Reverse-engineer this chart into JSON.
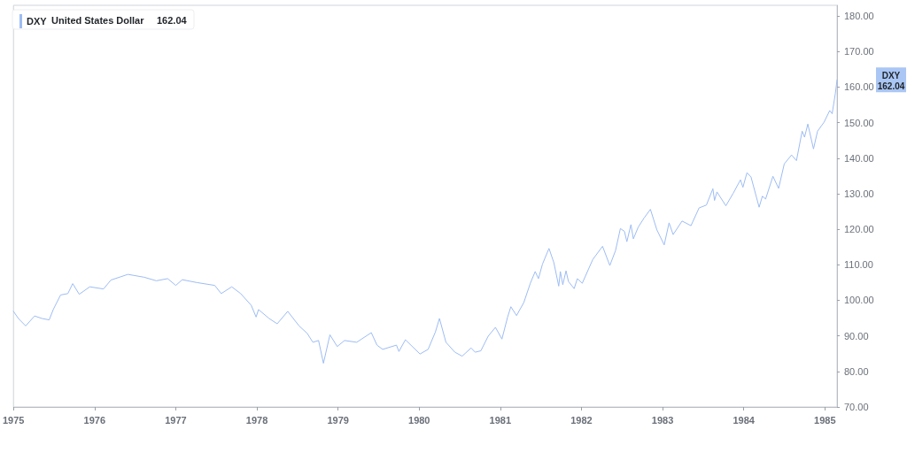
{
  "chart_data": {
    "type": "line",
    "annotations": [
      "United States Dollar",
      "162.04"
    ],
    "xlim": [
      1975,
      1985.15
    ],
    "xticks": [
      1975,
      1976,
      1977,
      1978,
      1979,
      1980,
      1981,
      1982,
      1983,
      1984,
      1985
    ],
    "ylim": [
      70,
      183
    ],
    "yticks": [
      {
        "value": 70,
        "label": "70.00"
      },
      {
        "value": 80,
        "label": "80.00"
      },
      {
        "value": 90,
        "label": "90.00"
      },
      {
        "value": 100,
        "label": "100.00"
      },
      {
        "value": 110,
        "label": "110.00"
      },
      {
        "value": 120,
        "label": "120.00"
      },
      {
        "value": 130,
        "label": "130.00"
      },
      {
        "value": 140,
        "label": "140.00"
      },
      {
        "value": 150,
        "label": "150.00"
      },
      {
        "value": 160,
        "label": "160.00"
      },
      {
        "value": 170,
        "label": "170.00"
      },
      {
        "value": 180,
        "label": "180.00"
      }
    ],
    "grid": false,
    "legend": "top left",
    "marker": "none",
    "line_style": "solid",
    "series": [
      {
        "name": "DXY",
        "color": "#9dbcf3",
        "x": [
          1975.0,
          1975.06,
          1975.15,
          1975.26,
          1975.35,
          1975.44,
          1975.49,
          1975.58,
          1975.67,
          1975.73,
          1975.81,
          1975.94,
          1976.11,
          1976.2,
          1976.41,
          1976.61,
          1976.76,
          1976.9,
          1977.0,
          1977.08,
          1977.26,
          1977.48,
          1977.56,
          1977.69,
          1977.8,
          1977.93,
          1977.99,
          1978.02,
          1978.15,
          1978.25,
          1978.38,
          1978.52,
          1978.62,
          1978.69,
          1978.76,
          1978.82,
          1978.9,
          1978.99,
          1979.08,
          1979.23,
          1979.41,
          1979.48,
          1979.55,
          1979.72,
          1979.75,
          1979.83,
          1980.01,
          1980.11,
          1980.2,
          1980.25,
          1980.33,
          1980.44,
          1980.53,
          1980.64,
          1980.69,
          1980.76,
          1980.85,
          1980.94,
          1981.02,
          1981.09,
          1981.13,
          1981.2,
          1981.29,
          1981.37,
          1981.43,
          1981.47,
          1981.52,
          1981.6,
          1981.66,
          1981.72,
          1981.74,
          1981.77,
          1981.81,
          1981.84,
          1981.91,
          1981.95,
          1982.01,
          1982.14,
          1982.26,
          1982.35,
          1982.42,
          1982.48,
          1982.53,
          1982.56,
          1982.61,
          1982.64,
          1982.7,
          1982.77,
          1982.85,
          1982.93,
          1983.02,
          1983.08,
          1983.13,
          1983.24,
          1983.35,
          1983.45,
          1983.54,
          1983.62,
          1983.64,
          1983.67,
          1983.78,
          1983.87,
          1983.96,
          1983.99,
          1984.04,
          1984.09,
          1984.19,
          1984.23,
          1984.27,
          1984.36,
          1984.43,
          1984.5,
          1984.59,
          1984.65,
          1984.72,
          1984.75,
          1984.79,
          1984.86,
          1984.91,
          1984.99,
          1985.06,
          1985.09,
          1985.13,
          1985.15
        ],
        "values": [
          96.9,
          94.9,
          92.8,
          95.6,
          94.9,
          94.5,
          97.4,
          101.5,
          101.9,
          104.7,
          101.7,
          103.8,
          103.2,
          105.7,
          107.3,
          106.5,
          105.5,
          106.1,
          104.2,
          105.8,
          105.0,
          104.2,
          101.9,
          103.8,
          101.9,
          98.6,
          95.3,
          97.4,
          94.9,
          93.4,
          96.9,
          92.8,
          90.7,
          88.2,
          88.7,
          82.3,
          90.3,
          87.0,
          88.7,
          88.2,
          90.9,
          87.4,
          86.2,
          87.4,
          85.6,
          88.9,
          84.9,
          86.2,
          91.1,
          94.9,
          88.2,
          85.4,
          84.3,
          86.6,
          85.4,
          85.8,
          89.9,
          92.4,
          89.1,
          95.3,
          98.2,
          95.7,
          99.4,
          104.8,
          108.1,
          106.1,
          110.2,
          114.6,
          110.6,
          104.0,
          108.1,
          104.4,
          108.3,
          105.3,
          103.3,
          106.1,
          104.8,
          111.5,
          115.2,
          109.8,
          114.0,
          120.2,
          119.4,
          116.5,
          121.3,
          117.3,
          120.6,
          123.1,
          125.6,
          119.8,
          115.6,
          121.8,
          118.5,
          122.3,
          121.0,
          126.0,
          126.8,
          131.4,
          128.1,
          130.5,
          126.6,
          130.1,
          133.9,
          131.8,
          135.9,
          134.7,
          126.2,
          129.3,
          128.5,
          134.9,
          131.5,
          138.4,
          140.9,
          139.3,
          147.6,
          145.9,
          149.6,
          142.6,
          147.6,
          150.1,
          153.4,
          152.5,
          158.3,
          162.0
        ]
      }
    ]
  }
}
